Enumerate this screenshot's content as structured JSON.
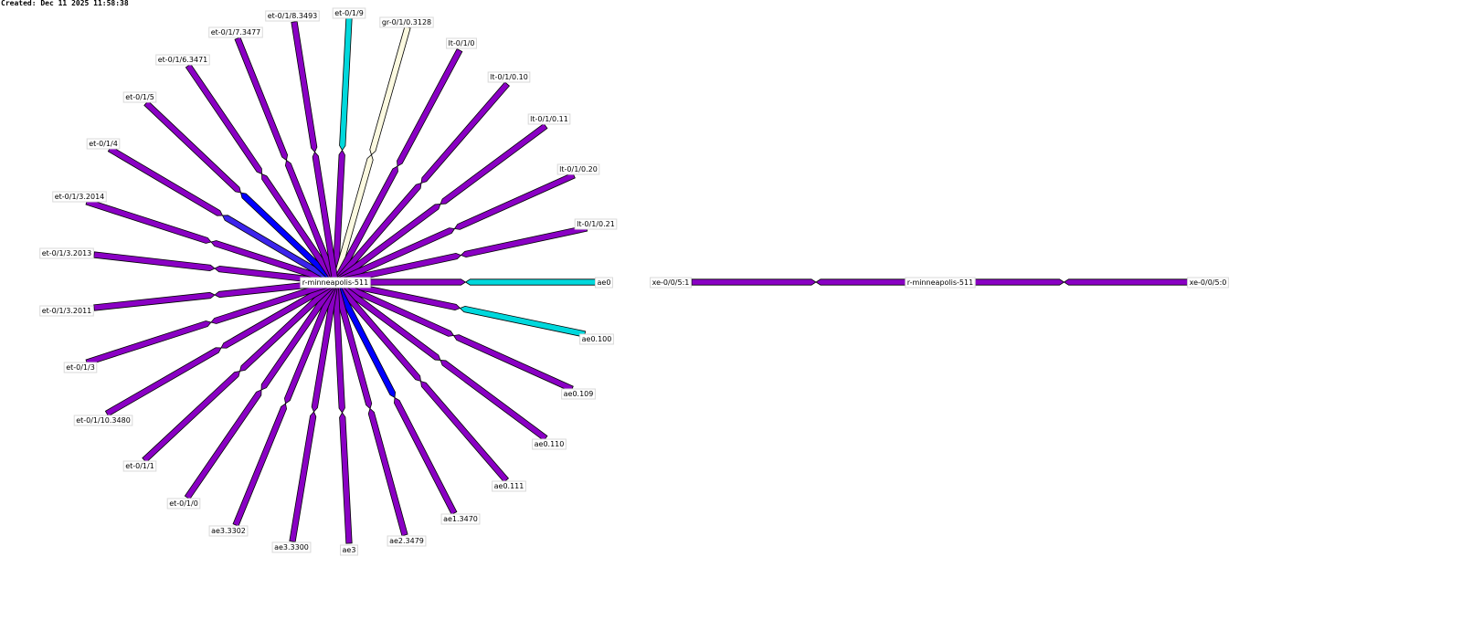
{
  "timestamp": "Created: Dec 11 2025 11:58:38",
  "colors": {
    "purple": "#8a00c4",
    "cyan": "#00d8dc",
    "blue": "#0000ff",
    "blueviolet": "#3c24ec",
    "cream": "#fbf9e0",
    "outline": "#000000"
  },
  "hub_node": {
    "label": "r-minneapolis-511"
  },
  "links": [
    {
      "label": "et-0/1/9",
      "near": "purple",
      "far": "cyan"
    },
    {
      "label": "gr-0/1/0.3128",
      "near": "cream",
      "far": "cream"
    },
    {
      "label": "lt-0/1/0",
      "near": "purple",
      "far": "purple"
    },
    {
      "label": "lt-0/1/0.10",
      "near": "purple",
      "far": "purple"
    },
    {
      "label": "lt-0/1/0.11",
      "near": "purple",
      "far": "purple"
    },
    {
      "label": "lt-0/1/0.20",
      "near": "purple",
      "far": "purple"
    },
    {
      "label": "lt-0/1/0.21",
      "near": "purple",
      "far": "purple"
    },
    {
      "label": "ae0",
      "near": "purple",
      "far": "cyan"
    },
    {
      "label": "ae0.100",
      "near": "purple",
      "far": "cyan"
    },
    {
      "label": "ae0.109",
      "near": "purple",
      "far": "purple"
    },
    {
      "label": "ae0.110",
      "near": "purple",
      "far": "purple"
    },
    {
      "label": "ae0.111",
      "near": "purple",
      "far": "purple"
    },
    {
      "label": "ae1.3470",
      "near": "blue",
      "far": "purple"
    },
    {
      "label": "ae2.3479",
      "near": "purple",
      "far": "purple"
    },
    {
      "label": "ae3",
      "near": "purple",
      "far": "purple"
    },
    {
      "label": "ae3.3300",
      "near": "purple",
      "far": "purple"
    },
    {
      "label": "ae3.3302",
      "near": "purple",
      "far": "purple"
    },
    {
      "label": "et-0/1/0",
      "near": "purple",
      "far": "purple"
    },
    {
      "label": "et-0/1/1",
      "near": "purple",
      "far": "purple"
    },
    {
      "label": "et-0/1/10.3480",
      "near": "purple",
      "far": "purple"
    },
    {
      "label": "et-0/1/3",
      "near": "purple",
      "far": "purple"
    },
    {
      "label": "et-0/1/3.2011",
      "near": "purple",
      "far": "purple"
    },
    {
      "label": "et-0/1/3.2013",
      "near": "purple",
      "far": "purple"
    },
    {
      "label": "et-0/1/3.2014",
      "near": "purple",
      "far": "purple"
    },
    {
      "label": "et-0/1/4",
      "near": "blueviolet",
      "far": "purple"
    },
    {
      "label": "et-0/1/5",
      "near": "blue",
      "far": "purple"
    },
    {
      "label": "et-0/1/6.3471",
      "near": "purple",
      "far": "purple"
    },
    {
      "label": "et-0/1/7.3477",
      "near": "purple",
      "far": "purple"
    },
    {
      "label": "et-0/1/8.3493",
      "near": "purple",
      "far": "purple"
    }
  ],
  "second_node": {
    "label": "r-minneapolis-511",
    "links": [
      {
        "label": "xe-0/0/5:1",
        "near": "purple",
        "far": "purple"
      },
      {
        "label": "xe-0/0/5:0",
        "near": "purple",
        "far": "purple"
      }
    ]
  }
}
